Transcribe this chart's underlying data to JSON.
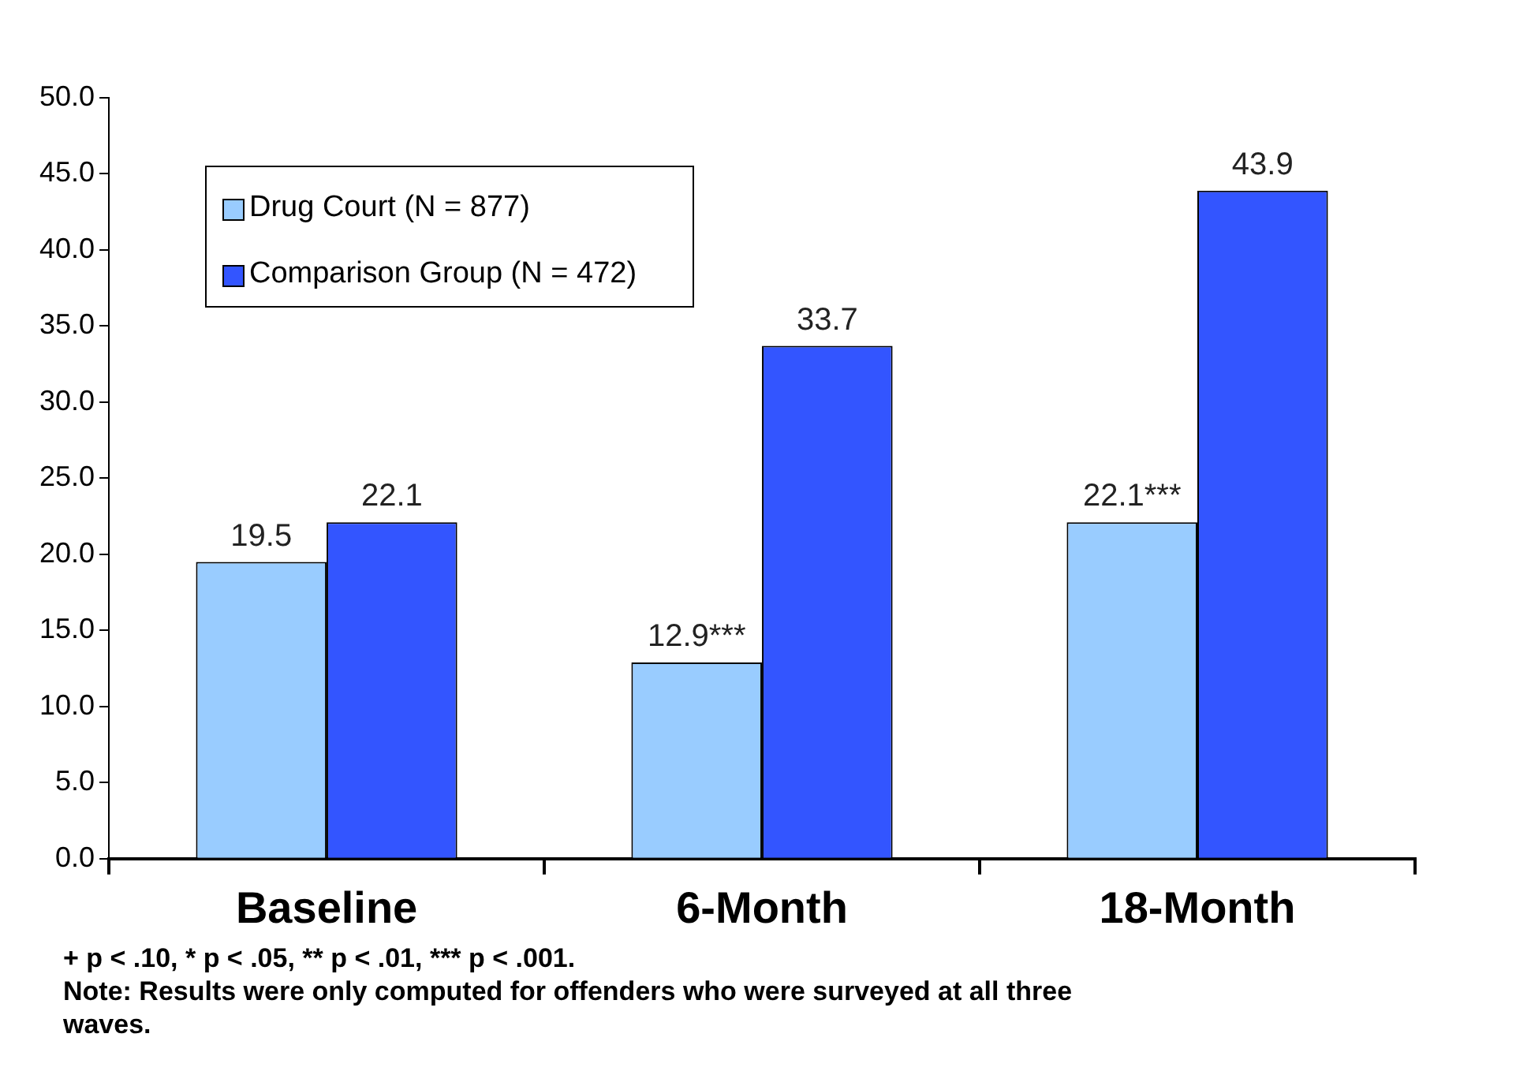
{
  "chart_data": {
    "type": "bar",
    "categories": [
      "Baseline",
      "6-Month",
      "18-Month"
    ],
    "series": [
      {
        "name": "Drug Court (N = 877)",
        "color": "#99ccff",
        "values": [
          19.5,
          12.9,
          22.1
        ],
        "value_labels": [
          "19.5",
          "12.9***",
          "22.1***"
        ]
      },
      {
        "name": "Comparison Group (N = 472)",
        "color": "#3355ff",
        "values": [
          22.1,
          33.7,
          43.9
        ],
        "value_labels": [
          "22.1",
          "33.7",
          "43.9"
        ]
      }
    ],
    "ylim": [
      0,
      50
    ],
    "yticks": [
      {
        "value": 0,
        "label": "0.0"
      },
      {
        "value": 5,
        "label": "5.0"
      },
      {
        "value": 10,
        "label": "10.0"
      },
      {
        "value": 15,
        "label": "15.0"
      },
      {
        "value": 20,
        "label": "20.0"
      },
      {
        "value": 25,
        "label": "25.0"
      },
      {
        "value": 30,
        "label": "30.0"
      },
      {
        "value": 35,
        "label": "35.0"
      },
      {
        "value": 40,
        "label": "40.0"
      },
      {
        "value": 45,
        "label": "45.0"
      },
      {
        "value": 50,
        "label": "50.0"
      }
    ],
    "grid": false,
    "legend": "top left",
    "annotations": [
      "+ p < .10, * p < .05, ** p < .01, *** p < .001.",
      "Note: Results were only computed for offenders who were surveyed at all three waves."
    ]
  }
}
